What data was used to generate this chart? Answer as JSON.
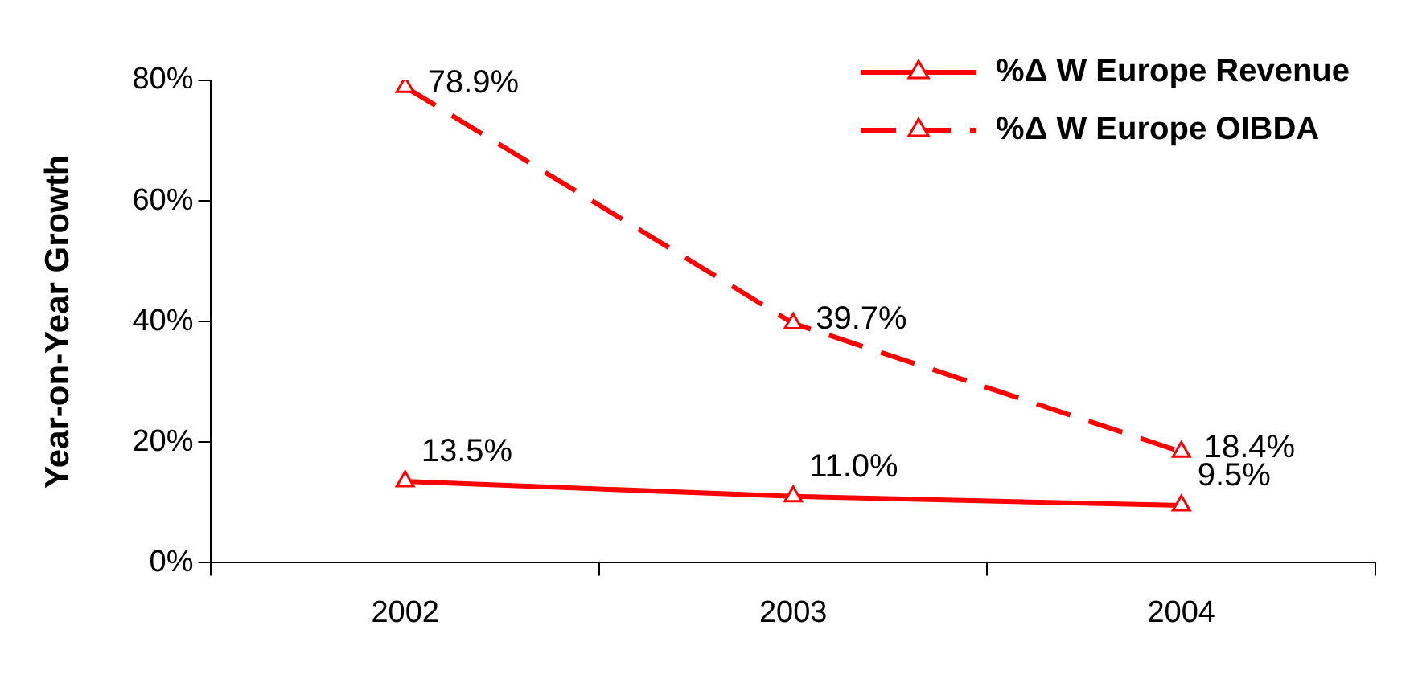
{
  "chart_data": {
    "type": "line",
    "ylabel": "Year-on-Year Growth",
    "categories": [
      "2002",
      "2003",
      "2004"
    ],
    "series": [
      {
        "name": "%Δ W Europe Revenue",
        "color": "#ff0000",
        "values": [
          13.5,
          11.0,
          9.5
        ],
        "value_labels": [
          "13.5%",
          "11.0%",
          "9.5%"
        ],
        "line_style": "solid"
      },
      {
        "name": "%Δ W Europe OIBDA",
        "color": "#ff0000",
        "values": [
          78.9,
          39.7,
          18.4
        ],
        "value_labels": [
          "78.9%",
          "39.7%",
          "18.4%"
        ],
        "line_style": "dashed"
      }
    ],
    "ylim": [
      0,
      80
    ],
    "yticks": [
      {
        "value": 0,
        "label": "0%"
      },
      {
        "value": 20,
        "label": "20%"
      },
      {
        "value": 40,
        "label": "40%"
      },
      {
        "value": 60,
        "label": "60%"
      },
      {
        "value": 80,
        "label": "80%"
      }
    ],
    "marker": "triangle",
    "legend": "top right",
    "grid": false
  }
}
